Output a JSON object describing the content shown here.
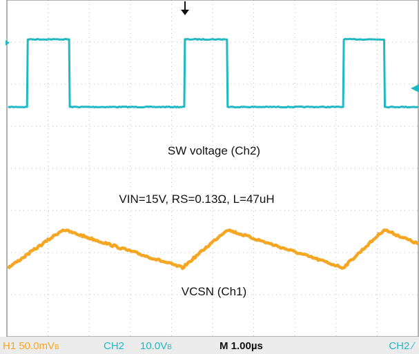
{
  "chart_data": {
    "type": "line",
    "title": "",
    "grid": true,
    "annotations": {
      "sw_label": "SW voltage (Ch2)",
      "conditions": "VIN=15V, RS=0.13Ω, L=47uH",
      "vcsn_label": "VCSN (Ch1)"
    },
    "timebase": {
      "label": "M 1.00µs",
      "us_per_div": 1.0
    },
    "status_bar": {
      "ch1": "H1  50.0mV",
      "ch1_suffix": "B",
      "ch2": "CH2",
      "ch2_scale": "10.0V",
      "ch2_suffix": "B",
      "timebase": "M 1.00µs",
      "trigger": "CH2 ∕"
    },
    "colors": {
      "ch1": "#f5a623",
      "ch2": "#1fb8c4",
      "grid": "#b8b8b8",
      "frame": "#7f7f7f",
      "status_bg": "#ececec"
    },
    "series": [
      {
        "name": "SW voltage (Ch2)",
        "color": "#1fb8c4",
        "unit": "V",
        "x_us": [
          0,
          0.55,
          0.57,
          1.78,
          1.8,
          5.15,
          5.17,
          6.4,
          6.42,
          9.8,
          9.82,
          11.0,
          11.02,
          12.0
        ],
        "y": [
          0,
          0,
          20,
          20,
          0,
          0,
          20,
          20,
          0,
          0,
          20,
          20,
          0,
          0
        ]
      },
      {
        "name": "VCSN (Ch1)",
        "color": "#f5a623",
        "unit": "mV",
        "x_us": [
          0,
          1.6,
          5.1,
          6.4,
          9.8,
          11.0,
          12.0
        ],
        "y": [
          0,
          85,
          0,
          85,
          0,
          85,
          53
        ]
      }
    ]
  }
}
